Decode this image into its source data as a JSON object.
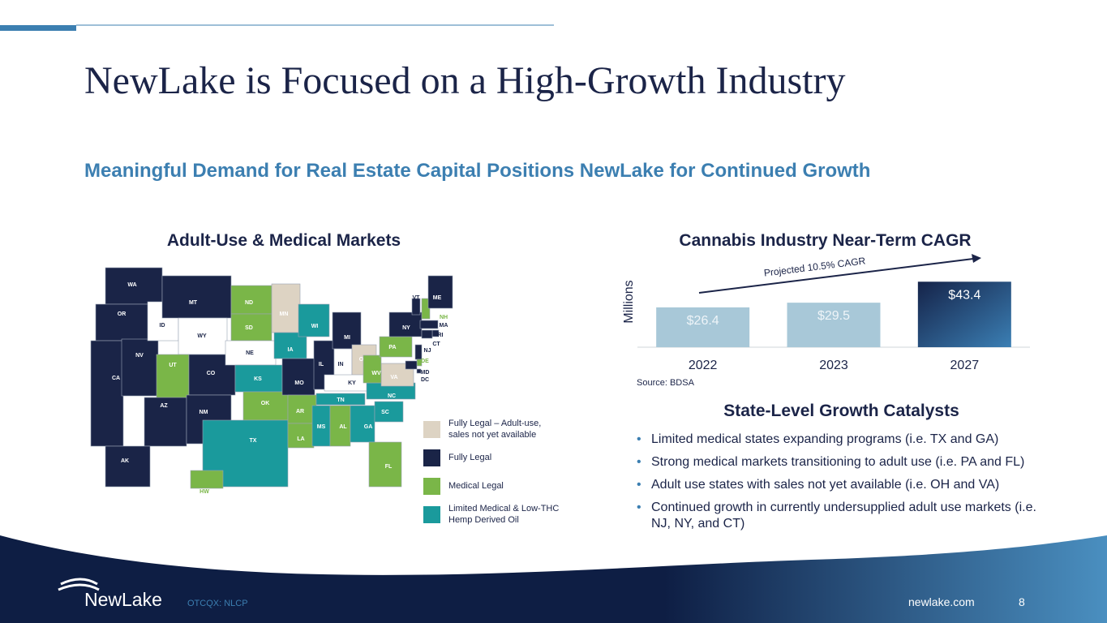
{
  "header": {
    "title": "NewLake is Focused on a High-Growth Industry",
    "subtitle": "Meaningful Demand for Real Estate Capital Positions NewLake for Continued Growth"
  },
  "map": {
    "title": "Adult-Use & Medical Markets",
    "states": [
      {
        "label": "WA",
        "color": "#1a2447"
      },
      {
        "label": "OR",
        "color": "#1a2447"
      },
      {
        "label": "CA",
        "color": "#1a2447"
      },
      {
        "label": "NV",
        "color": "#1a2447"
      },
      {
        "label": "ID",
        "color": "#ffffff"
      },
      {
        "label": "MT",
        "color": "#1a2447"
      },
      {
        "label": "WY",
        "color": "#ffffff"
      },
      {
        "label": "UT",
        "color": "#7ab648"
      },
      {
        "label": "CO",
        "color": "#1a2447"
      },
      {
        "label": "AZ",
        "color": "#1a2447"
      },
      {
        "label": "NM",
        "color": "#1a2447"
      },
      {
        "label": "ND",
        "color": "#7ab648"
      },
      {
        "label": "SD",
        "color": "#7ab648"
      },
      {
        "label": "NE",
        "color": "#ffffff"
      },
      {
        "label": "KS",
        "color": "#1a9a9c"
      },
      {
        "label": "OK",
        "color": "#7ab648"
      },
      {
        "label": "TX",
        "color": "#1a9a9c"
      },
      {
        "label": "MN",
        "color": "#ddd3c3"
      },
      {
        "label": "IA",
        "color": "#1a9a9c"
      },
      {
        "label": "MO",
        "color": "#1a2447"
      },
      {
        "label": "AR",
        "color": "#7ab648"
      },
      {
        "label": "LA",
        "color": "#7ab648"
      },
      {
        "label": "WI",
        "color": "#1a9a9c"
      },
      {
        "label": "IL",
        "color": "#1a2447"
      },
      {
        "label": "MI",
        "color": "#1a2447"
      },
      {
        "label": "IN",
        "color": "#ffffff"
      },
      {
        "label": "OH",
        "color": "#ddd3c3"
      },
      {
        "label": "KY",
        "color": "#ffffff"
      },
      {
        "label": "TN",
        "color": "#1a9a9c"
      },
      {
        "label": "MS",
        "color": "#1a9a9c"
      },
      {
        "label": "AL",
        "color": "#7ab648"
      },
      {
        "label": "GA",
        "color": "#1a9a9c"
      },
      {
        "label": "FL",
        "color": "#7ab648"
      },
      {
        "label": "SC",
        "color": "#1a9a9c"
      },
      {
        "label": "NC",
        "color": "#1a9a9c"
      },
      {
        "label": "VA",
        "color": "#ddd3c3"
      },
      {
        "label": "WV",
        "color": "#7ab648"
      },
      {
        "label": "PA",
        "color": "#7ab648"
      },
      {
        "label": "NY",
        "color": "#1a2447"
      },
      {
        "label": "VT",
        "color": "#1a2447"
      },
      {
        "label": "NH",
        "color": "#7ab648"
      },
      {
        "label": "ME",
        "color": "#1a2447"
      },
      {
        "label": "MA",
        "color": "#1a2447"
      },
      {
        "label": "RI",
        "color": "#1a2447"
      },
      {
        "label": "CT",
        "color": "#1a2447"
      },
      {
        "label": "NJ",
        "color": "#1a2447"
      },
      {
        "label": "DE",
        "color": "#7ab648"
      },
      {
        "label": "MD",
        "color": "#1a2447"
      },
      {
        "label": "DC",
        "color": "#1a2447"
      },
      {
        "label": "AK",
        "color": "#1a2447"
      },
      {
        "label": "HW",
        "color": "#7ab648"
      }
    ],
    "legend": [
      {
        "label": "Fully Legal – Adult-use, sales not yet available",
        "color": "#ddd3c3"
      },
      {
        "label": "Fully Legal",
        "color": "#1a2447"
      },
      {
        "label": "Medical Legal",
        "color": "#7ab648"
      },
      {
        "label": "Limited Medical & Low-THC Hemp Derived Oil",
        "color": "#1a9a9c"
      }
    ]
  },
  "chart_data": {
    "type": "bar",
    "title": "Cannabis Industry Near-Term CAGR",
    "y_label": "Millions",
    "annotation": "Projected 10.5% CAGR",
    "source": "Source: BDSA",
    "categories": [
      "2022",
      "2023",
      "2027"
    ],
    "values": [
      26.4,
      29.5,
      43.4
    ],
    "value_labels": [
      "$26.4",
      "$29.5",
      "$43.4"
    ],
    "colors": [
      "#a8c8d8",
      "#a8c8d8",
      "#1d3a66"
    ],
    "ylim": [
      0,
      50
    ]
  },
  "catalysts": {
    "title": "State-Level Growth Catalysts",
    "items": [
      "Limited medical states expanding programs (i.e. TX and GA)",
      "Strong medical markets transitioning to adult use (i.e. PA and FL)",
      "Adult use states with sales not yet available (i.e. OH and VA)",
      "Continued growth in currently undersupplied adult use markets (i.e. NJ, NY, and CT)"
    ]
  },
  "footer": {
    "brand": "NewLake",
    "ticker": "OTCQX: NLCP",
    "website": "newlake.com",
    "page": "8"
  }
}
